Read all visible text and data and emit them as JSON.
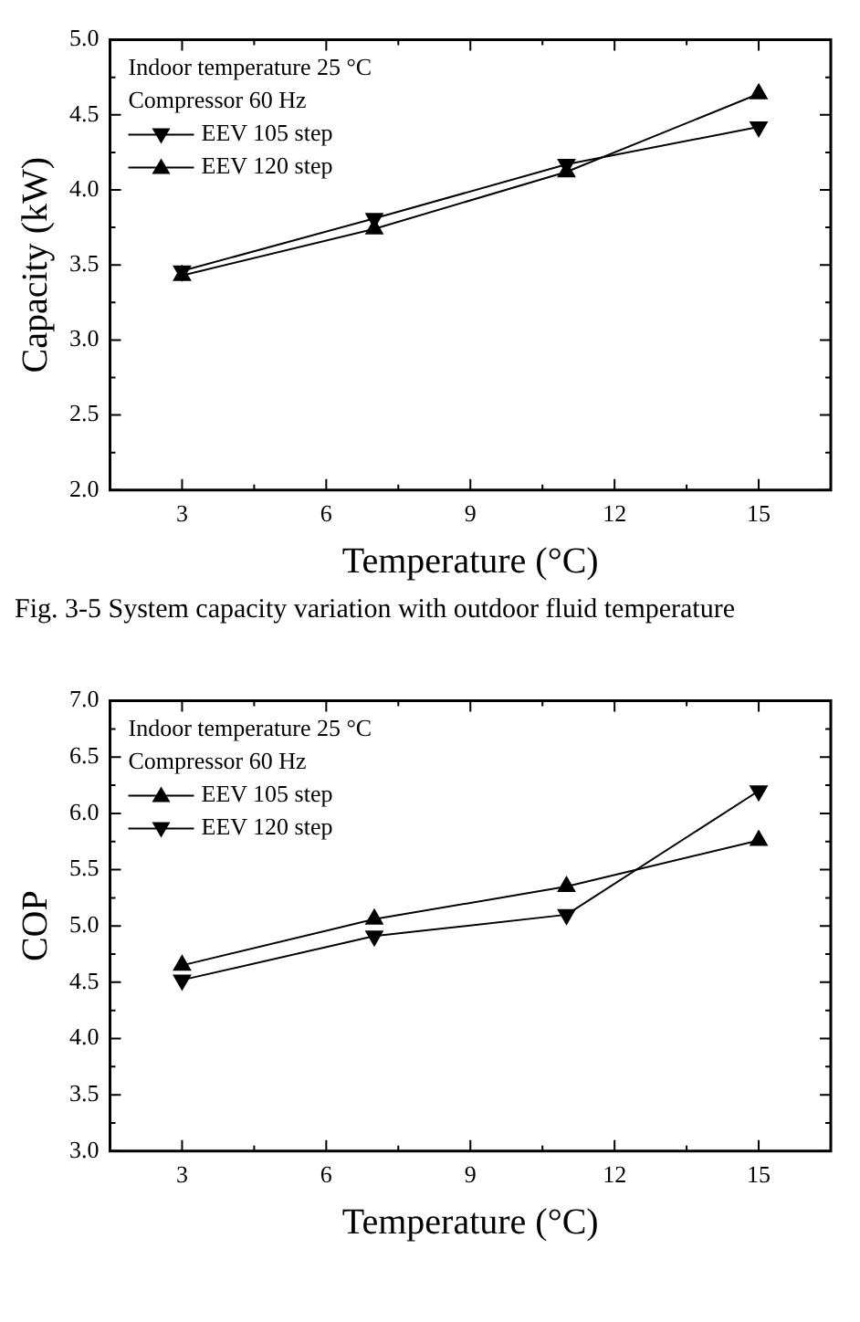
{
  "chart_data": [
    {
      "type": "line",
      "xlabel": "Temperature (°C)",
      "ylabel": "Capacity (kW)",
      "annotations": [
        "Indoor temperature 25 °C",
        "Compressor 60 Hz",
        "Fig. 3-5 System capacity variation with outdoor fluid temperature"
      ],
      "x": [
        3,
        7,
        11,
        15
      ],
      "series": [
        {
          "name": "EEV 105 step",
          "color": "#000000",
          "marker": "triangle-down",
          "values": [
            3.46,
            3.81,
            4.17,
            4.42
          ]
        },
        {
          "name": "EEV 120 step",
          "color": "#000000",
          "marker": "triangle",
          "values": [
            3.43,
            3.74,
            4.12,
            4.64
          ]
        }
      ],
      "xlim": [
        1.5,
        16.5
      ],
      "xticks": [
        3,
        {
          "value": 4.5,
          "label": null
        },
        6,
        {
          "value": 7.5,
          "label": null
        },
        9,
        {
          "value": 10.5,
          "label": null
        },
        12,
        {
          "value": 13.5,
          "label": null
        },
        15
      ],
      "ylim": [
        2,
        5
      ],
      "yticks": [
        {
          "value": 2,
          "label": "2.0"
        },
        {
          "value": 2.25,
          "label": null
        },
        2.5,
        {
          "value": 2.75,
          "label": null
        },
        {
          "value": 3,
          "label": "3.0"
        },
        {
          "value": 3.25,
          "label": null
        },
        3.5,
        {
          "value": 3.75,
          "label": null
        },
        {
          "value": 4,
          "label": "4.0"
        },
        {
          "value": 4.25,
          "label": null
        },
        4.5,
        {
          "value": 4.75,
          "label": null
        },
        {
          "value": 5,
          "label": "5.0"
        }
      ],
      "legend": "top left",
      "line_style": "solid"
    },
    {
      "type": "line",
      "xlabel": "Temperature (°C)",
      "ylabel": "COP",
      "annotations": [
        "Indoor temperature 25 °C",
        "Compressor 60 Hz"
      ],
      "x": [
        3,
        7,
        11,
        15
      ],
      "series": [
        {
          "name": "EEV 105 step",
          "color": "#000000",
          "marker": "triangle",
          "values": [
            4.65,
            5.06,
            5.35,
            5.76
          ]
        },
        {
          "name": "EEV 120 step",
          "color": "#000000",
          "marker": "triangle-down",
          "values": [
            4.52,
            4.91,
            5.1,
            6.2
          ]
        }
      ],
      "xlim": [
        1.5,
        16.5
      ],
      "xticks": [
        3,
        {
          "value": 4.5,
          "label": null
        },
        6,
        {
          "value": 7.5,
          "label": null
        },
        9,
        {
          "value": 10.5,
          "label": null
        },
        12,
        {
          "value": 13.5,
          "label": null
        },
        15
      ],
      "ylim": [
        3,
        7
      ],
      "yticks": [
        {
          "value": 3,
          "label": "3.0"
        },
        {
          "value": 3.25,
          "label": null
        },
        3.5,
        {
          "value": 3.75,
          "label": null
        },
        {
          "value": 4,
          "label": "4.0"
        },
        {
          "value": 4.25,
          "label": null
        },
        4.5,
        {
          "value": 4.75,
          "label": null
        },
        {
          "value": 5,
          "label": "5.0"
        },
        {
          "value": 5.25,
          "label": null
        },
        5.5,
        {
          "value": 5.75,
          "label": null
        },
        {
          "value": 6,
          "label": "6.0"
        },
        {
          "value": 6.25,
          "label": null
        },
        6.5,
        {
          "value": 6.75,
          "label": null
        },
        {
          "value": 7,
          "label": "7.0"
        }
      ],
      "legend": "top left",
      "line_style": "solid"
    }
  ]
}
